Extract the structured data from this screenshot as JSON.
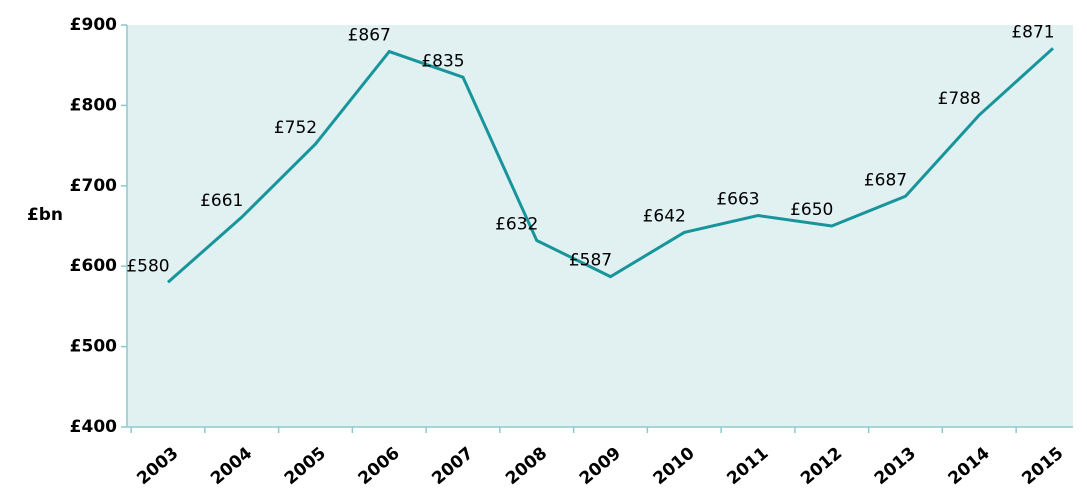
{
  "chart_data": {
    "type": "line",
    "y_label": "£bn",
    "categories": [
      "2003",
      "2004",
      "2005",
      "2006",
      "2007",
      "2008",
      "2009",
      "2010",
      "2011",
      "2012",
      "2013",
      "2014",
      "2015"
    ],
    "values": [
      580,
      661,
      752,
      867,
      835,
      632,
      587,
      642,
      663,
      650,
      687,
      788,
      871
    ],
    "value_labels": [
      "£580",
      "£661",
      "£752",
      "£867",
      "£835",
      "£632",
      "£587",
      "£642",
      "£663",
      "£650",
      "£687",
      "£788",
      "£871"
    ],
    "color": "#17959b",
    "ylim": [
      400,
      900
    ],
    "yticks": [
      {
        "value": 400,
        "label": "£400"
      },
      {
        "value": 500,
        "label": "£500"
      },
      {
        "value": 600,
        "label": "£600"
      },
      {
        "value": 700,
        "label": "£700"
      },
      {
        "value": 800,
        "label": "£800"
      },
      {
        "value": 900,
        "label": "£900"
      }
    ]
  }
}
